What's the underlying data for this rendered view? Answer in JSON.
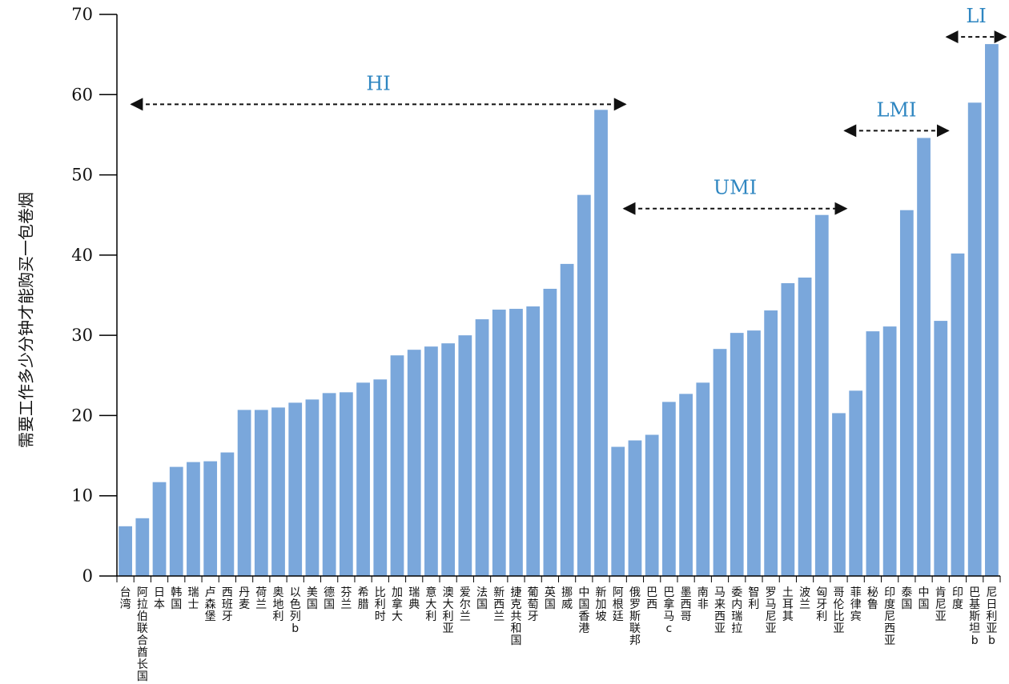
{
  "chart_data": {
    "type": "bar",
    "ylabel": "需要工作多少分钟才能购买一包卷烟",
    "ylim": [
      0,
      70
    ],
    "yticks": [
      0,
      10,
      20,
      30,
      40,
      50,
      60,
      70
    ],
    "grid": false,
    "bar_color": "#7aa7db",
    "group_color": "#2e86c1",
    "categories": [
      "台湾",
      "阿拉伯联合酋长国",
      "日本",
      "韩国",
      "瑞士",
      "卢森堡",
      "西班牙",
      "丹麦",
      "荷兰",
      "奥地利",
      "以色列b",
      "美国",
      "德国",
      "芬兰",
      "希腊",
      "比利时",
      "加拿大",
      "瑞典",
      "意大利",
      "澳大利亚",
      "爱尔兰",
      "法国",
      "新西兰",
      "捷克共和国",
      "葡萄牙",
      "英国",
      "挪威",
      "中国香港",
      "新加坡",
      "阿根廷",
      "俄罗斯联邦",
      "巴西",
      "巴拿马c",
      "墨西哥",
      "南非",
      "马来西亚",
      "委内瑞拉",
      "智利",
      "罗马尼亚",
      "土耳其",
      "波兰",
      "匈牙利",
      "哥伦比亚",
      "菲律宾",
      "秘鲁",
      "印度尼西亚",
      "泰国",
      "中国",
      "肯尼亚",
      "印度",
      "巴基斯坦b",
      "尼日利亚b"
    ],
    "values": [
      6.2,
      7.2,
      11.7,
      13.6,
      14.2,
      14.3,
      15.4,
      20.7,
      20.7,
      21.0,
      21.6,
      22.0,
      22.8,
      22.9,
      24.1,
      24.5,
      27.5,
      28.2,
      28.6,
      29.0,
      30.0,
      32.0,
      33.2,
      33.3,
      33.6,
      35.8,
      38.9,
      47.5,
      58.1,
      16.1,
      16.9,
      17.6,
      21.7,
      22.7,
      24.1,
      28.3,
      30.3,
      30.6,
      33.1,
      36.5,
      37.2,
      45.0,
      20.3,
      23.1,
      30.5,
      31.1,
      45.6,
      54.6,
      31.8,
      40.2,
      59.0,
      66.3
    ],
    "groups": [
      {
        "label": "HI",
        "start": 0,
        "end": 28,
        "y": 58.8
      },
      {
        "label": "UMI",
        "start": 29,
        "end": 41,
        "y": 45.8
      },
      {
        "label": "LMI",
        "start": 42,
        "end": 47,
        "y": 55.5
      },
      {
        "label": "LI",
        "start": 48,
        "end": 51,
        "y": 67.2
      }
    ]
  }
}
